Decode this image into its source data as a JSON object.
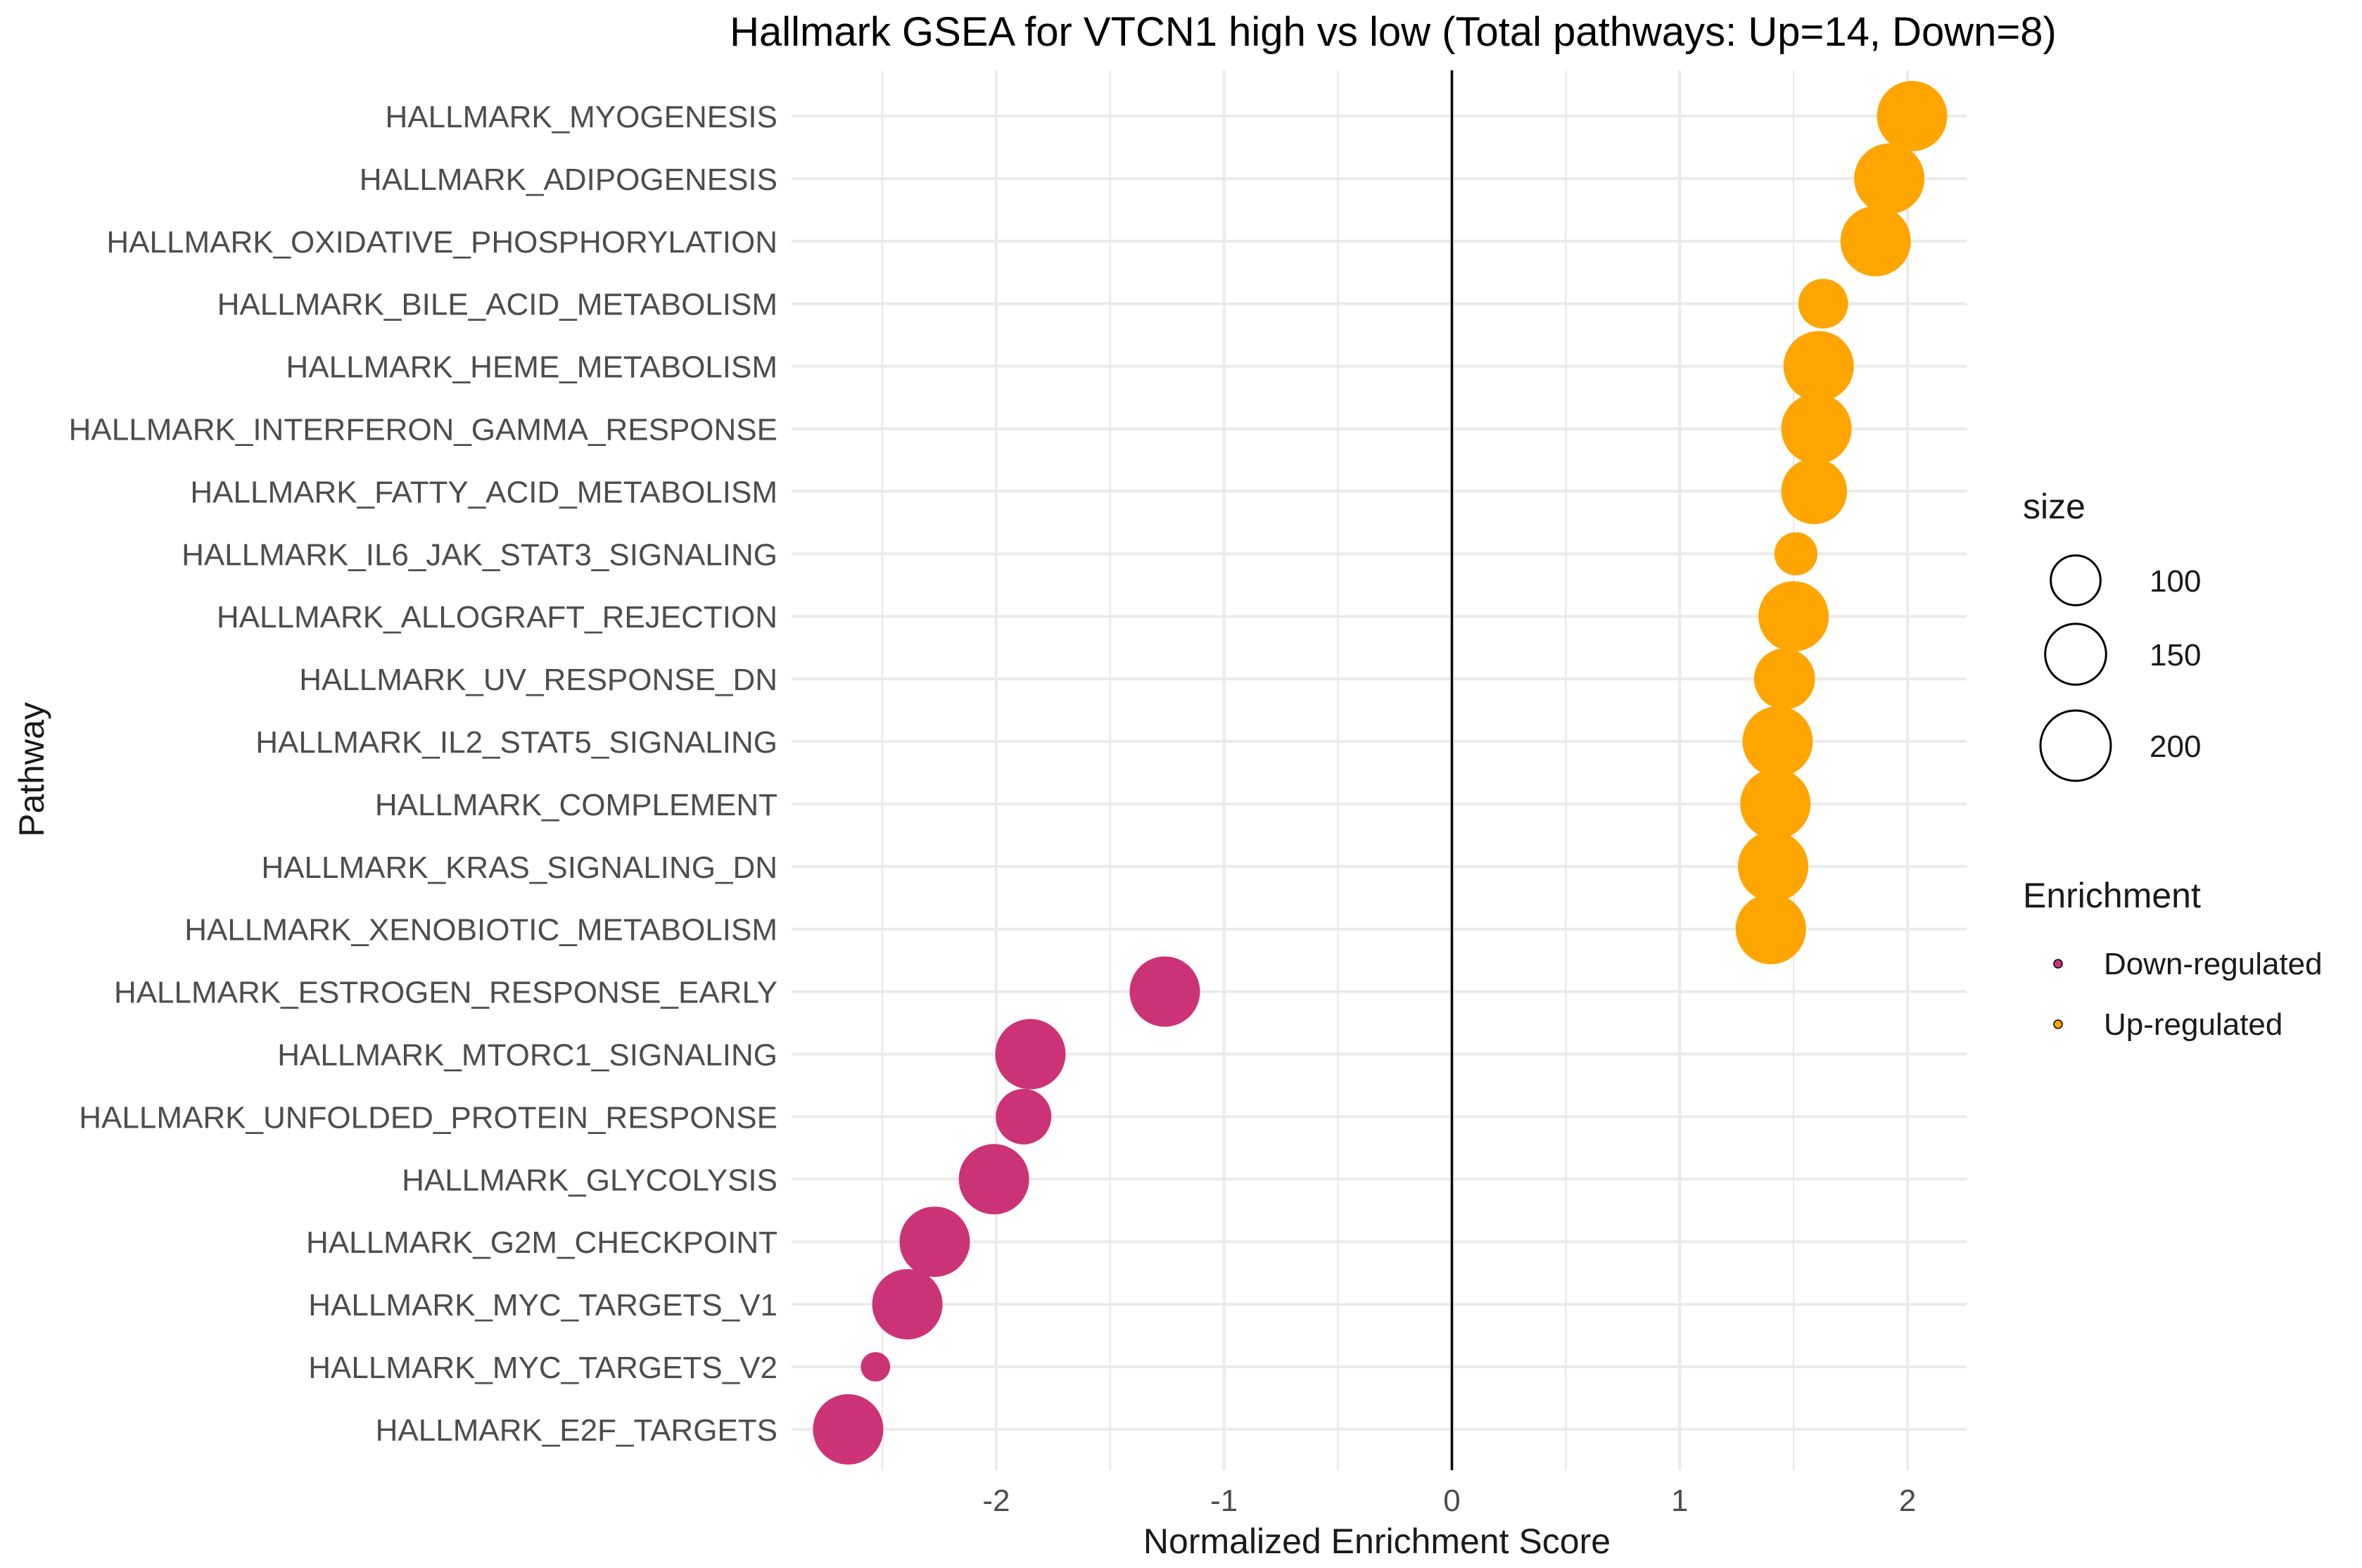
{
  "chart_data": {
    "type": "scatter",
    "title": "Hallmark GSEA for VTCN1 high vs low (Total pathways: Up=14, Down=8)",
    "xlabel": "Normalized Enrichment Score",
    "ylabel": "Pathway",
    "xlim": [
      -2.9,
      2.25
    ],
    "x_ticks": [
      -2,
      -1,
      0,
      1,
      2
    ],
    "x_tick_labels": [
      "-2",
      "-1",
      "0",
      "1",
      "2"
    ],
    "vline_at": 0,
    "grid": true,
    "pathways": [
      "HALLMARK_MYOGENESIS",
      "HALLMARK_ADIPOGENESIS",
      "HALLMARK_OXIDATIVE_PHOSPHORYLATION",
      "HALLMARK_BILE_ACID_METABOLISM",
      "HALLMARK_HEME_METABOLISM",
      "HALLMARK_INTERFERON_GAMMA_RESPONSE",
      "HALLMARK_FATTY_ACID_METABOLISM",
      "HALLMARK_IL6_JAK_STAT3_SIGNALING",
      "HALLMARK_ALLOGRAFT_REJECTION",
      "HALLMARK_UV_RESPONSE_DN",
      "HALLMARK_IL2_STAT5_SIGNALING",
      "HALLMARK_COMPLEMENT",
      "HALLMARK_KRAS_SIGNALING_DN",
      "HALLMARK_XENOBIOTIC_METABOLISM",
      "HALLMARK_ESTROGEN_RESPONSE_EARLY",
      "HALLMARK_MTORC1_SIGNALING",
      "HALLMARK_UNFOLDED_PROTEIN_RESPONSE",
      "HALLMARK_GLYCOLYSIS",
      "HALLMARK_G2M_CHECKPOINT",
      "HALLMARK_MYC_TARGETS_V1",
      "HALLMARK_MYC_TARGETS_V2",
      "HALLMARK_E2F_TARGETS"
    ],
    "nes": [
      2.02,
      1.92,
      1.86,
      1.63,
      1.61,
      1.6,
      1.59,
      1.51,
      1.5,
      1.46,
      1.43,
      1.42,
      1.41,
      1.4,
      -1.26,
      -1.85,
      -1.88,
      -2.01,
      -2.27,
      -2.39,
      -2.53,
      -2.65
    ],
    "size": [
      200,
      200,
      200,
      100,
      200,
      200,
      175,
      75,
      200,
      150,
      200,
      200,
      200,
      200,
      200,
      200,
      125,
      200,
      200,
      200,
      35,
      200
    ],
    "enrichment": [
      "Up-regulated",
      "Up-regulated",
      "Up-regulated",
      "Up-regulated",
      "Up-regulated",
      "Up-regulated",
      "Up-regulated",
      "Up-regulated",
      "Up-regulated",
      "Up-regulated",
      "Up-regulated",
      "Up-regulated",
      "Up-regulated",
      "Up-regulated",
      "Down-regulated",
      "Down-regulated",
      "Down-regulated",
      "Down-regulated",
      "Down-regulated",
      "Down-regulated",
      "Down-regulated",
      "Down-regulated"
    ],
    "legend": {
      "size_title": "size",
      "size_breaks": [
        100,
        150,
        200
      ],
      "size_labels": [
        "100",
        "150",
        "200"
      ],
      "color_title": "Enrichment",
      "color_labels": [
        "Down-regulated",
        "Up-regulated"
      ],
      "placement": "right"
    },
    "colors": {
      "Up-regulated": "#FFA500",
      "Down-regulated": "#CC3377",
      "grid": "#EBEBEB",
      "vline": "#000000"
    }
  }
}
